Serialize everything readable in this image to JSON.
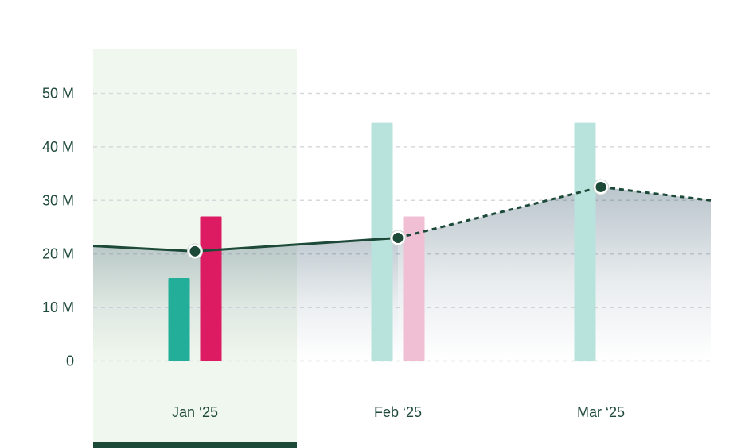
{
  "chart_data": {
    "type": "bar",
    "categories": [
      "Jan ‘25",
      "Feb ‘25",
      "Mar ‘25"
    ],
    "ylim": [
      0,
      50
    ],
    "y_ticks": [
      {
        "value": 0,
        "label": "0"
      },
      {
        "value": 10,
        "label": "10 M"
      },
      {
        "value": 20,
        "label": "20 M"
      },
      {
        "value": 30,
        "label": "30 M"
      },
      {
        "value": 40,
        "label": "40 M"
      },
      {
        "value": 50,
        "label": "50 M"
      }
    ],
    "grid": true,
    "selected_category": "Jan ‘25",
    "series": [
      {
        "kind": "bar",
        "values": [
          15.5,
          44.5,
          44.5
        ],
        "faded": [
          false,
          true,
          true
        ],
        "color": "#22ae98",
        "faded_color": "#b8e3dd"
      },
      {
        "kind": "bar",
        "values": [
          27,
          27,
          null
        ],
        "faded": [
          false,
          true,
          false
        ],
        "color": "#dc1b62",
        "faded_color": "#f1bfd3"
      },
      {
        "kind": "line",
        "values": [
          20.5,
          23,
          32.5
        ],
        "trend_in": 21.5,
        "trend_out": 30,
        "projected_from_index": 1,
        "color": "#1d4a38"
      }
    ],
    "colors": {
      "highlight": "#f0f7ee",
      "highlight_bar": "#1d4a38",
      "grid": "#d6d9dc",
      "area": "#24485e"
    }
  }
}
